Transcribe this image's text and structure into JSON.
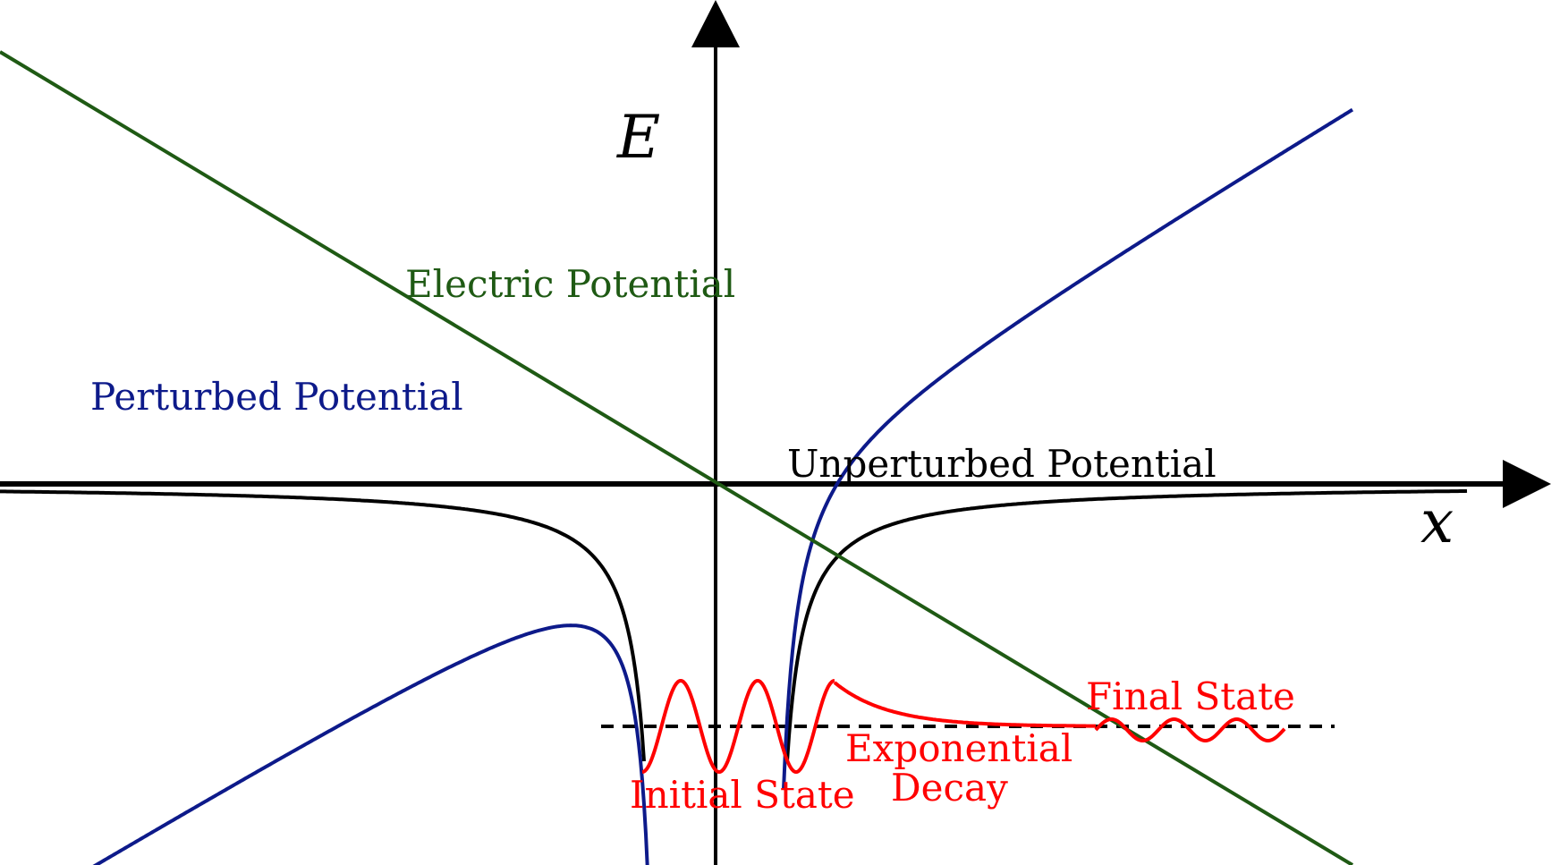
{
  "axes": {
    "x_label": "x",
    "y_label": "E"
  },
  "labels": {
    "electric": "Electric Potential",
    "perturbed": "Perturbed Potential",
    "unperturbed": "Unperturbed Potential",
    "final_state": "Final State",
    "exponential_line1": "Exponential",
    "exponential_line2": "Decay",
    "initial_state": "Initial State"
  },
  "colors": {
    "electric": "#1f5a14",
    "perturbed": "#0d1a8a",
    "unperturbed": "#000000",
    "wavefunction": "#ff0000",
    "axis": "#000000"
  }
}
